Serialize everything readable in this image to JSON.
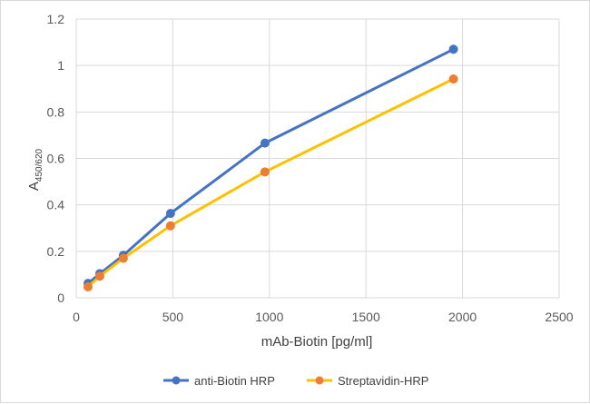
{
  "chart_data": {
    "type": "line",
    "title": "",
    "xlabel": "mAb-Biotin [pg/ml]",
    "ylabel_main": "A",
    "ylabel_sub": "450/620",
    "xlim": [
      0,
      2500
    ],
    "ylim": [
      0,
      1.2
    ],
    "xticks": [
      0,
      500,
      1000,
      1500,
      2000,
      2500
    ],
    "yticks": [
      0,
      0.2,
      0.4,
      0.6,
      0.8,
      1,
      1.2
    ],
    "xtick_labels": [
      "0",
      "500",
      "1000",
      "1500",
      "2000",
      "2500"
    ],
    "ytick_labels": [
      "0",
      "0.2",
      "0.4",
      "0.6",
      "0.8",
      "1",
      "1.2"
    ],
    "grid": "vertical and horizontal major gridlines",
    "legend_position": "bottom",
    "series": [
      {
        "name": "anti-Biotin HRP",
        "color": "#4472c4",
        "marker_color": "#4472c4",
        "x": [
          61,
          122,
          244,
          488,
          977,
          1953
        ],
        "y": [
          0.062,
          0.104,
          0.183,
          0.363,
          0.666,
          1.07
        ]
      },
      {
        "name": "Streptavidin-HRP",
        "color": "#ffc000",
        "marker_color": "#ed7d31",
        "x": [
          61,
          122,
          244,
          488,
          977,
          1953
        ],
        "y": [
          0.047,
          0.093,
          0.17,
          0.31,
          0.542,
          0.942
        ]
      }
    ]
  }
}
